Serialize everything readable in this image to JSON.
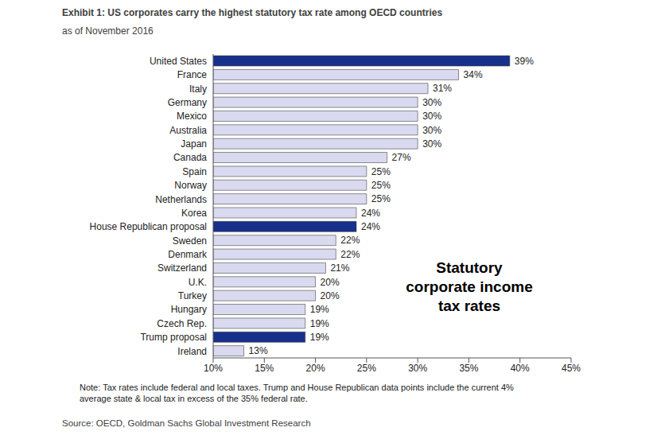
{
  "chart_data": {
    "type": "bar",
    "orientation": "horizontal",
    "title": "Exhibit 1: US corporates carry the highest statutory tax rate among OECD countries",
    "subtitle": "as of November 2016",
    "annotation": [
      "Statutory",
      "corporate income",
      "tax rates"
    ],
    "note": [
      "Note: Tax rates include federal and local taxes. Trump and House Republican data points include the current 4%",
      "average state & local tax in excess of the 35% federal rate."
    ],
    "source": "Source: OECD, Goldman Sachs Global Investment Research",
    "categories": [
      "United States",
      "France",
      "Italy",
      "Germany",
      "Mexico",
      "Australia",
      "Japan",
      "Canada",
      "Spain",
      "Norway",
      "Netherlands",
      "Korea",
      "House Republican proposal",
      "Sweden",
      "Denmark",
      "Switzerland",
      "U.K.",
      "Turkey",
      "Hungary",
      "Czech Rep.",
      "Trump proposal",
      "Ireland"
    ],
    "values": [
      39,
      34,
      31,
      30,
      30,
      30,
      30,
      27,
      25,
      25,
      25,
      24,
      24,
      22,
      22,
      21,
      20,
      20,
      19,
      19,
      19,
      13
    ],
    "value_labels": [
      "39%",
      "34%",
      "31%",
      "30%",
      "30%",
      "30%",
      "30%",
      "27%",
      "25%",
      "25%",
      "25%",
      "24%",
      "24%",
      "22%",
      "22%",
      "21%",
      "20%",
      "20%",
      "19%",
      "19%",
      "19%",
      "13%"
    ],
    "colors": [
      "#16308c",
      "#d9daf0",
      "#d9daf0",
      "#d9daf0",
      "#d9daf0",
      "#d9daf0",
      "#d9daf0",
      "#d9daf0",
      "#d9daf0",
      "#d9daf0",
      "#d9daf0",
      "#d9daf0",
      "#16308c",
      "#d9daf0",
      "#d9daf0",
      "#d9daf0",
      "#d9daf0",
      "#d9daf0",
      "#d9daf0",
      "#d9daf0",
      "#16308c",
      "#d9daf0"
    ],
    "xlim": [
      10,
      45
    ],
    "xticks": [
      {
        "value": 10,
        "label": "10%"
      },
      {
        "value": 15,
        "label": "15%"
      },
      {
        "value": 20,
        "label": "20%"
      },
      {
        "value": 25,
        "label": "25%"
      },
      {
        "value": 30,
        "label": "30%"
      },
      {
        "value": 35,
        "label": "35%"
      },
      {
        "value": 40,
        "label": "40%"
      },
      {
        "value": 45,
        "label": "45%"
      }
    ],
    "grid": false,
    "data_labels": true
  }
}
